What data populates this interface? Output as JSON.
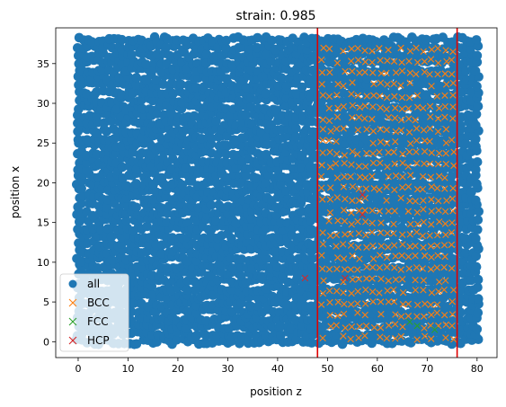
{
  "chart_data": {
    "type": "scatter",
    "title": "strain: 0.985",
    "xlabel": "position z",
    "ylabel": "position x",
    "xlim": [
      -4.5,
      84
    ],
    "ylim": [
      -2,
      39.5
    ],
    "xticks": [
      0,
      10,
      20,
      30,
      40,
      50,
      60,
      70,
      80
    ],
    "yticks": [
      0,
      5,
      10,
      15,
      20,
      25,
      30,
      35
    ],
    "grid": false,
    "legend_position": "lower-left",
    "vlines": [
      {
        "x": 48,
        "color": "#e00000"
      },
      {
        "x": 76,
        "color": "#e00000"
      }
    ],
    "series": [
      {
        "name": "all",
        "marker": "filled-circle",
        "color": "#1f77b4",
        "region": {
          "x_range": [
            0,
            80
          ],
          "y_range": [
            0,
            38
          ]
        }
      },
      {
        "name": "BCC",
        "marker": "x",
        "color": "#ff7f0e",
        "region": {
          "x_range": [
            49,
            76
          ],
          "y_range": [
            0.5,
            37.5
          ]
        }
      },
      {
        "name": "FCC",
        "marker": "x",
        "color": "#2ca02c",
        "points": [
          [
            66.5,
            2.5
          ],
          [
            71.5,
            1.5
          ],
          [
            68,
            2.0
          ]
        ]
      },
      {
        "name": "HCP",
        "marker": "x",
        "color": "#d62728",
        "points": [
          [
            45.5,
            8.0
          ],
          [
            57,
            18.5
          ],
          [
            57,
            16.0
          ],
          [
            53.5,
            8.0
          ]
        ]
      }
    ]
  }
}
